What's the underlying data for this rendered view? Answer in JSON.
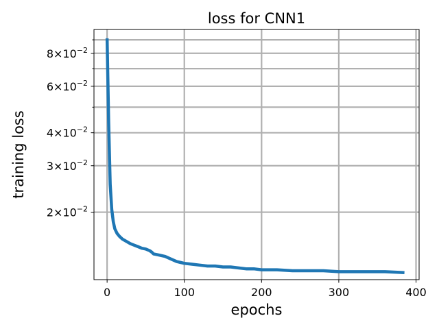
{
  "chart_data": {
    "type": "line",
    "title": "loss for CNN1",
    "xlabel": "epochs",
    "ylabel": "training loss",
    "x_scale": "linear",
    "y_scale": "log",
    "xlim": [
      -17,
      404
    ],
    "ylim": [
      0.0111,
      0.0985
    ],
    "grid": true,
    "x_ticks": [
      {
        "value": 0,
        "label": "0"
      },
      {
        "value": 100,
        "label": "100"
      },
      {
        "value": 200,
        "label": "200"
      },
      {
        "value": 300,
        "label": "300"
      },
      {
        "value": 400,
        "label": "400"
      }
    ],
    "y_major_ticks": [
      {
        "value": 0.02,
        "base": "2",
        "exp": "−2"
      },
      {
        "value": 0.03,
        "base": "3",
        "exp": "−2"
      },
      {
        "value": 0.04,
        "base": "4",
        "exp": "−2"
      },
      {
        "value": 0.06,
        "base": "6",
        "exp": "−2"
      },
      {
        "value": 0.08,
        "base": "8",
        "exp": "−2"
      }
    ],
    "y_minor_ticks": [
      0.05,
      0.07,
      0.09
    ],
    "series": [
      {
        "color": "#1f77b4",
        "x": [
          0,
          2,
          4,
          6,
          8,
          10,
          13,
          16,
          20,
          25,
          30,
          35,
          40,
          45,
          50,
          55,
          58,
          60,
          65,
          70,
          75,
          80,
          85,
          90,
          95,
          100,
          110,
          120,
          130,
          140,
          150,
          160,
          170,
          180,
          190,
          200,
          220,
          240,
          260,
          280,
          300,
          320,
          340,
          360,
          385
        ],
        "y": [
          0.0912,
          0.044,
          0.0255,
          0.0205,
          0.0184,
          0.0173,
          0.0166,
          0.0162,
          0.0158,
          0.0155,
          0.0152,
          0.015,
          0.0148,
          0.0146,
          0.0145,
          0.0143,
          0.0141,
          0.0139,
          0.0138,
          0.0137,
          0.0136,
          0.0134,
          0.0132,
          0.013,
          0.0129,
          0.0128,
          0.0127,
          0.0126,
          0.0125,
          0.0125,
          0.0124,
          0.0124,
          0.0123,
          0.0122,
          0.0122,
          0.0121,
          0.0121,
          0.012,
          0.012,
          0.012,
          0.0119,
          0.0119,
          0.0119,
          0.0119,
          0.0118
        ]
      }
    ]
  }
}
